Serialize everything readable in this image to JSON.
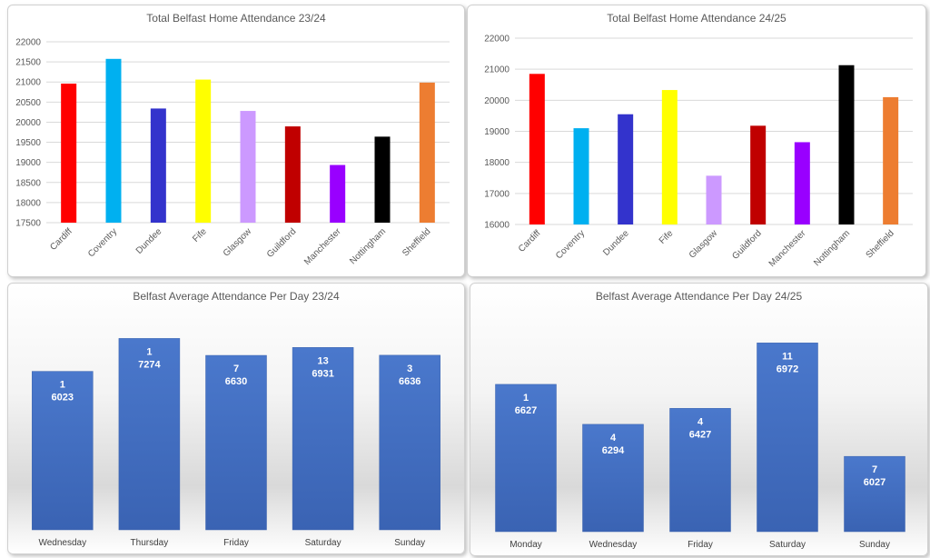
{
  "chart_data": [
    {
      "type": "bar",
      "title": "Total Belfast Home Attendance 23/24",
      "categories": [
        "Cardiff",
        "Coventry",
        "Dundee",
        "Fife",
        "Glasgow",
        "Guildford",
        "Manchester",
        "Nottingham",
        "Sheffield"
      ],
      "values": [
        20960,
        21575,
        20340,
        21060,
        20280,
        19895,
        18935,
        19640,
        20985
      ],
      "colors": [
        "#FF0000",
        "#00B0F0",
        "#3333CC",
        "#FFFF00",
        "#CC99FF",
        "#C00000",
        "#9900FF",
        "#000000",
        "#ED7D31"
      ],
      "ylim": [
        17500,
        22000
      ],
      "yticks": [
        17500,
        18000,
        18500,
        19000,
        19500,
        20000,
        20500,
        21000,
        21500,
        22000
      ],
      "grid": true,
      "xlabel": "",
      "ylabel": ""
    },
    {
      "type": "bar",
      "title": "Total Belfast Home Attendance 24/25",
      "categories": [
        "Cardiff",
        "Coventry",
        "Dundee",
        "Fife",
        "Glasgow",
        "Guildford",
        "Manchester",
        "Nottingham",
        "Sheffield"
      ],
      "values": [
        20850,
        19100,
        19550,
        20330,
        17570,
        19180,
        18650,
        21130,
        20100
      ],
      "colors": [
        "#FF0000",
        "#00B0F0",
        "#3333CC",
        "#FFFF00",
        "#CC99FF",
        "#C00000",
        "#9900FF",
        "#000000",
        "#ED7D31"
      ],
      "ylim": [
        16000,
        22000
      ],
      "yticks": [
        16000,
        17000,
        18000,
        19000,
        20000,
        21000,
        22000
      ],
      "grid": true,
      "xlabel": "",
      "ylabel": ""
    },
    {
      "type": "bar",
      "title": "Belfast Average Attendance Per Day 23/24",
      "categories": [
        "Wednesday",
        "Thursday",
        "Friday",
        "Saturday",
        "Sunday"
      ],
      "values": [
        6023,
        7274,
        6630,
        6931,
        6636
      ],
      "counts": [
        "1",
        "1",
        "7",
        "13",
        "3"
      ],
      "color": "#4472C4",
      "ylim": [
        0,
        8600
      ],
      "grid": false,
      "xlabel": "",
      "ylabel": ""
    },
    {
      "type": "bar",
      "title": "Belfast Average Attendance Per Day 24/25",
      "categories": [
        "Monday",
        "Wednesday",
        "Friday",
        "Saturday",
        "Sunday"
      ],
      "values": [
        6627,
        6294,
        6427,
        6972,
        6027
      ],
      "counts": [
        "1",
        "4",
        "4",
        "11",
        "7"
      ],
      "color": "#4472C4",
      "ylim": [
        5400,
        7300
      ],
      "grid": false,
      "xlabel": "",
      "ylabel": ""
    }
  ]
}
